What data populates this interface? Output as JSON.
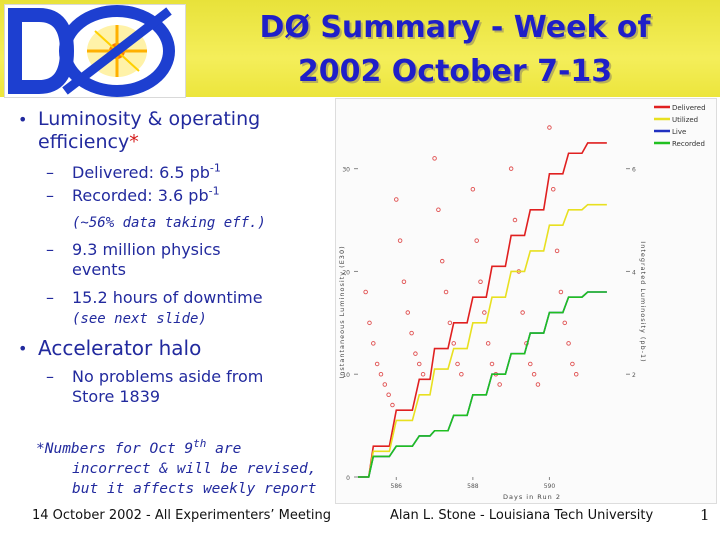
{
  "title": {
    "line1": "DØ Summary - Week of",
    "line2": "2002  October 7-13"
  },
  "logo": {
    "text": "DØ",
    "icon": "d0-logo-icon"
  },
  "bullets": {
    "luminosity": {
      "text": "Luminosity & operating efficiency",
      "asterisk": "*",
      "delivered_label": "Delivered: 6.5 pb",
      "delivered_sup": "-1",
      "recorded_label": "Recorded: 3.6 pb",
      "recorded_sup": "-1",
      "efficiency_note": "(~56% data taking eff.)",
      "events": "9.3 million physics events",
      "downtime": "15.2 hours of downtime",
      "downtime_note": "(see next slide)"
    },
    "halo": {
      "text": "Accelerator halo",
      "detail": "No problems aside from Store 1839"
    }
  },
  "footnote": {
    "line1": "*Numbers for Oct 9",
    "line1_sup": "th",
    "line1_end": " are",
    "line2": "incorrect & will be revised,",
    "line3": "but it affects weekly report"
  },
  "chart_data": {
    "type": "line",
    "title": "",
    "xlabel": "Days in Run 2",
    "ylabel_left": "Instantaneous Luminosity (E30)",
    "ylabel_right": "Integrated Luminosity (pb-1)",
    "x_ticks": [
      "586",
      "588",
      "590"
    ],
    "y_left_ticks": [
      "0",
      "10",
      "20",
      "30"
    ],
    "y_right_ticks": [
      "2",
      "4",
      "6"
    ],
    "xlim": [
      585,
      592
    ],
    "ylim_right": [
      0,
      7.2
    ],
    "legend": [
      "Delivered",
      "Utilized",
      "Live",
      "Recorded"
    ],
    "colors": {
      "Delivered": "#e02020",
      "Utilized": "#e8e020",
      "Live": "#2030c0",
      "Recorded": "#20c020",
      "markers": "#e05050"
    },
    "series": [
      {
        "name": "Delivered",
        "x": [
          585.0,
          585.4,
          586.0,
          586.6,
          587.0,
          587.5,
          588.0,
          588.5,
          589.0,
          589.5,
          590.0,
          590.5,
          591.0,
          591.5
        ],
        "y": [
          0.0,
          0.6,
          1.3,
          1.9,
          2.5,
          3.0,
          3.5,
          4.1,
          4.7,
          5.2,
          5.9,
          6.3,
          6.5,
          6.5
        ]
      },
      {
        "name": "Utilized",
        "x": [
          585.0,
          585.4,
          586.0,
          586.6,
          587.0,
          587.5,
          588.0,
          588.5,
          589.0,
          589.5,
          590.0,
          590.5,
          591.0,
          591.5
        ],
        "y": [
          0.0,
          0.5,
          1.1,
          1.6,
          2.1,
          2.5,
          3.0,
          3.5,
          4.0,
          4.4,
          4.9,
          5.2,
          5.3,
          5.3
        ]
      },
      {
        "name": "Live",
        "x": [
          585.0,
          585.4,
          586.0,
          586.6,
          587.0,
          587.5,
          588.0,
          588.5,
          589.0,
          589.5,
          590.0,
          590.5,
          591.0,
          591.5
        ],
        "y": [
          0.0,
          0.4,
          0.6,
          0.8,
          0.9,
          1.2,
          1.6,
          2.0,
          2.4,
          2.8,
          3.2,
          3.5,
          3.6,
          3.6
        ]
      },
      {
        "name": "Recorded",
        "x": [
          585.0,
          585.4,
          586.0,
          586.6,
          587.0,
          587.5,
          588.0,
          588.5,
          589.0,
          589.5,
          590.0,
          590.5,
          591.0,
          591.5
        ],
        "y": [
          0.0,
          0.4,
          0.6,
          0.8,
          0.9,
          1.2,
          1.6,
          2.0,
          2.4,
          2.8,
          3.2,
          3.5,
          3.6,
          3.6
        ]
      }
    ],
    "inst_points": [
      {
        "x": 585.2,
        "y": 18
      },
      {
        "x": 585.3,
        "y": 15
      },
      {
        "x": 585.4,
        "y": 13
      },
      {
        "x": 585.5,
        "y": 11
      },
      {
        "x": 585.6,
        "y": 10
      },
      {
        "x": 585.7,
        "y": 9
      },
      {
        "x": 585.8,
        "y": 8
      },
      {
        "x": 585.9,
        "y": 7
      },
      {
        "x": 586.0,
        "y": 27
      },
      {
        "x": 586.1,
        "y": 23
      },
      {
        "x": 586.2,
        "y": 19
      },
      {
        "x": 586.3,
        "y": 16
      },
      {
        "x": 586.4,
        "y": 14
      },
      {
        "x": 586.5,
        "y": 12
      },
      {
        "x": 586.6,
        "y": 11
      },
      {
        "x": 586.7,
        "y": 10
      },
      {
        "x": 587.0,
        "y": 31
      },
      {
        "x": 587.1,
        "y": 26
      },
      {
        "x": 587.2,
        "y": 21
      },
      {
        "x": 587.3,
        "y": 18
      },
      {
        "x": 587.4,
        "y": 15
      },
      {
        "x": 587.5,
        "y": 13
      },
      {
        "x": 587.6,
        "y": 11
      },
      {
        "x": 587.7,
        "y": 10
      },
      {
        "x": 588.0,
        "y": 28
      },
      {
        "x": 588.1,
        "y": 23
      },
      {
        "x": 588.2,
        "y": 19
      },
      {
        "x": 588.3,
        "y": 16
      },
      {
        "x": 588.4,
        "y": 13
      },
      {
        "x": 588.5,
        "y": 11
      },
      {
        "x": 588.6,
        "y": 10
      },
      {
        "x": 588.7,
        "y": 9
      },
      {
        "x": 589.0,
        "y": 30
      },
      {
        "x": 589.1,
        "y": 25
      },
      {
        "x": 589.2,
        "y": 20
      },
      {
        "x": 589.3,
        "y": 16
      },
      {
        "x": 589.4,
        "y": 13
      },
      {
        "x": 589.5,
        "y": 11
      },
      {
        "x": 589.6,
        "y": 10
      },
      {
        "x": 589.7,
        "y": 9
      },
      {
        "x": 590.0,
        "y": 34
      },
      {
        "x": 590.1,
        "y": 28
      },
      {
        "x": 590.2,
        "y": 22
      },
      {
        "x": 590.3,
        "y": 18
      },
      {
        "x": 590.4,
        "y": 15
      },
      {
        "x": 590.5,
        "y": 13
      },
      {
        "x": 590.6,
        "y": 11
      },
      {
        "x": 590.7,
        "y": 10
      }
    ]
  },
  "footer": {
    "left": "14 October 2002 - All Experimenters’ Meeting",
    "right": "Alan L. Stone - Louisiana Tech University",
    "page": "1"
  }
}
